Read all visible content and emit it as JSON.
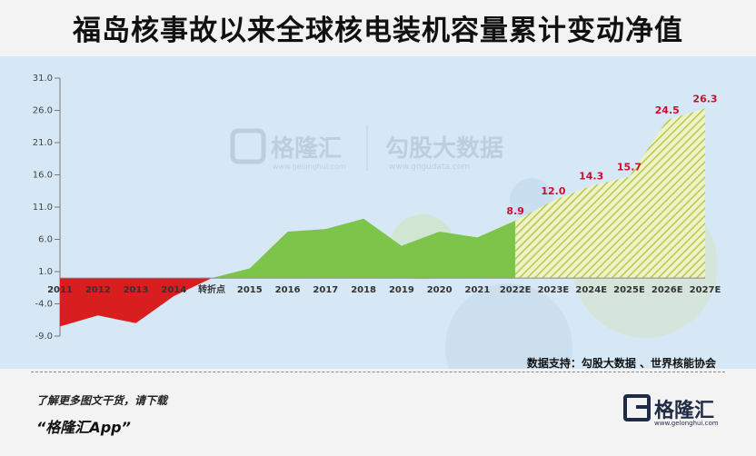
{
  "title": "福岛核事故以来全球核电装机容量累计变动净值",
  "watermark": {
    "brand": "格隆汇",
    "brand_url": "www.gelonghui.com",
    "partner": "勾股大数据",
    "partner_url": "www.gogudata.com"
  },
  "chart_data": {
    "type": "area",
    "title": "福岛核事故以来全球核电装机容量累计变动净值",
    "categories": [
      "2011",
      "2012",
      "2013",
      "2014",
      "转折点",
      "2015",
      "2016",
      "2017",
      "2018",
      "2019",
      "2020",
      "2021",
      "2022E",
      "2023E",
      "2024E",
      "2025E",
      "2026E",
      "2027E"
    ],
    "values": [
      -7.5,
      -5.8,
      -7.0,
      -2.8,
      0,
      1.5,
      7.2,
      7.6,
      9.2,
      5.0,
      7.2,
      6.3,
      8.9,
      12.0,
      14.3,
      15.7,
      24.5,
      26.3
    ],
    "y_ticks": [
      "31.0",
      "26.0",
      "21.0",
      "16.0",
      "11.0",
      "6.0",
      "1.0",
      "-4.0",
      "-9.0"
    ],
    "ylim": [
      -9,
      31
    ],
    "data_labels": [
      {
        "category": "2022E",
        "value": "8.9"
      },
      {
        "category": "2023E",
        "value": "12.0"
      },
      {
        "category": "2024E",
        "value": "14.3"
      },
      {
        "category": "2025E",
        "value": "15.7"
      },
      {
        "category": "2026E",
        "value": "24.5"
      },
      {
        "category": "2027E",
        "value": "26.3"
      }
    ],
    "segments": {
      "negative_color": "#d81e1e",
      "historical_color": "#7dc44b",
      "forecast_color": "#c9d46a"
    },
    "xlabel": "",
    "ylabel": ""
  },
  "source": "数据支持：勾股大数据 、世界核能协会",
  "promo": {
    "line1": "了解更多图文干货，请下载",
    "line2": "“格隆汇App”"
  },
  "logo": {
    "text": "格隆汇",
    "url": "www.gelonghui.com"
  }
}
